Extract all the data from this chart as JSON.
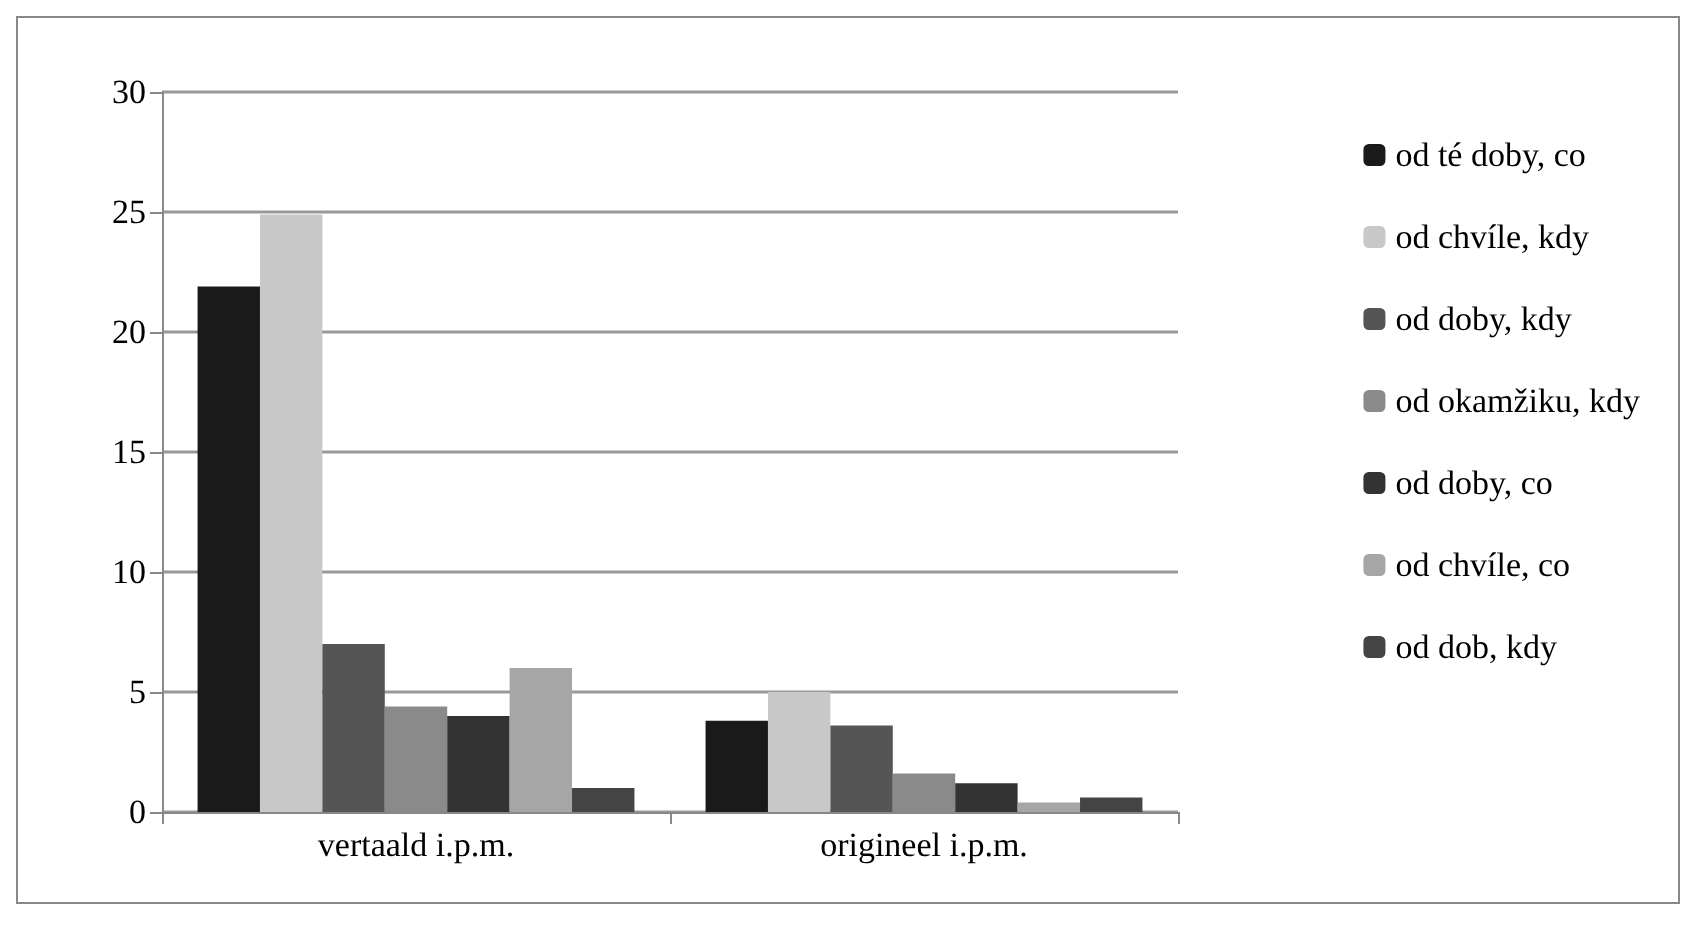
{
  "chart_data": {
    "type": "bar",
    "categories": [
      "vertaald i.p.m.",
      "origineel i.p.m."
    ],
    "series": [
      {
        "name": "od té doby, co",
        "color": "#1a1a1a",
        "values": [
          21.9,
          3.8
        ]
      },
      {
        "name": "od chvíle, kdy",
        "color": "#c8c8c8",
        "values": [
          24.9,
          5.0
        ]
      },
      {
        "name": "od doby, kdy",
        "color": "#555555",
        "values": [
          7.0,
          3.6
        ]
      },
      {
        "name": "od okamžiku, kdy",
        "color": "#8a8a8a",
        "values": [
          4.4,
          1.6
        ]
      },
      {
        "name": "od doby, co",
        "color": "#333333",
        "values": [
          4.0,
          1.2
        ]
      },
      {
        "name": "od chvíle, co",
        "color": "#a6a6a6",
        "values": [
          6.0,
          0.4
        ]
      },
      {
        "name": "od dob, kdy",
        "color": "#444444",
        "values": [
          1.0,
          0.6
        ]
      }
    ],
    "ylim": [
      0,
      30
    ],
    "yticks": [
      0,
      5,
      10,
      15,
      20,
      25,
      30
    ],
    "grid": "y",
    "legend": "right"
  }
}
